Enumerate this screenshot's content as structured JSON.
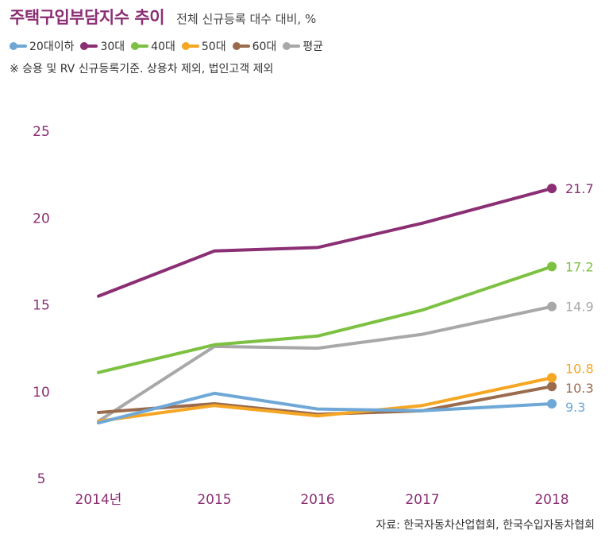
{
  "title": "주택구입부담지수 추이",
  "subtitle": "전체 신규등록 대수 대비, %",
  "note": "※ 승용 및 RV 신규등록기준. 상용차 제외, 법인고객 제외",
  "source": "자료: 한국자동차산업협회, 한국수입자동차협회",
  "chart_data": {
    "type": "line",
    "categories": [
      "2014년",
      "2015",
      "2016",
      "2017",
      "2018"
    ],
    "ylim": [
      5,
      25
    ],
    "yticks": [
      5,
      10,
      15,
      20,
      25
    ],
    "grid": false,
    "legend_position": "top-left",
    "series": [
      {
        "name": "20대이하",
        "color": "#6fa8d6",
        "values": [
          8.2,
          9.9,
          9.0,
          8.9,
          9.3
        ],
        "end_label": "9.3"
      },
      {
        "name": "30대",
        "color": "#8b2f74",
        "values": [
          15.5,
          18.1,
          18.3,
          19.7,
          21.7
        ],
        "end_label": "21.7"
      },
      {
        "name": "40대",
        "color": "#7dc142",
        "values": [
          11.1,
          12.7,
          13.2,
          14.7,
          17.2
        ],
        "end_label": "17.2"
      },
      {
        "name": "50대",
        "color": "#f5a623",
        "values": [
          8.3,
          9.2,
          8.6,
          9.2,
          10.8
        ],
        "end_label": "10.8"
      },
      {
        "name": "60대",
        "color": "#9b6b4e",
        "values": [
          8.8,
          9.3,
          8.7,
          8.9,
          10.3
        ],
        "end_label": "10.3"
      },
      {
        "name": "평균",
        "color": "#a8a8a8",
        "values": [
          8.3,
          12.6,
          12.5,
          13.3,
          14.9
        ],
        "end_label": "14.9"
      }
    ]
  }
}
